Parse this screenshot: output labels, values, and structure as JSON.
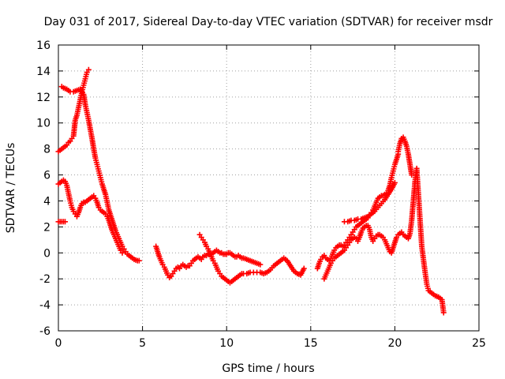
{
  "chart_data": {
    "type": "scatter",
    "title": "Day 031 of 2017, Sidereal Day-to-day VTEC variation (SDTVAR) for receiver msdr",
    "xlabel": "GPS time / hours",
    "ylabel": "SDTVAR / TECUs",
    "xlim": [
      0,
      25
    ],
    "ylim": [
      -6,
      16
    ],
    "x_ticks": [
      "0",
      "5",
      "10",
      "15",
      "20",
      "25"
    ],
    "y_ticks": [
      "-6",
      "-4",
      "-2",
      "0",
      "2",
      "4",
      "6",
      "8",
      "10",
      "12",
      "14",
      "16"
    ],
    "grid": true,
    "marker": "plus",
    "color": "#ff0000",
    "series": [
      {
        "x": [
          0.0,
          0.1,
          0.2,
          0.3,
          0.4,
          0.5,
          0.6,
          0.7,
          0.8,
          0.9,
          1.0,
          1.1,
          1.2,
          1.3,
          1.4,
          1.5,
          1.6,
          1.7,
          1.8
        ],
        "y": [
          7.8,
          7.9,
          8.0,
          8.1,
          8.2,
          8.3,
          8.5,
          8.6,
          8.8,
          9.0,
          10.2,
          10.6,
          11.2,
          11.8,
          12.4,
          12.9,
          13.4,
          13.9,
          14.1
        ]
      },
      {
        "x": [
          0.2,
          0.3,
          0.5,
          0.7,
          0.9,
          1.1,
          1.3,
          1.5,
          1.6,
          1.7,
          1.8,
          1.9,
          2.0,
          2.1,
          2.2,
          2.3,
          2.4,
          2.5,
          2.6,
          2.7,
          2.8,
          2.9,
          3.0,
          3.1,
          3.2,
          3.3,
          3.4,
          3.5,
          3.6,
          3.7,
          3.8,
          3.9,
          4.0,
          4.1,
          4.2,
          4.3,
          4.5,
          4.7,
          4.8
        ],
        "y": [
          12.8,
          12.7,
          12.6,
          12.4,
          12.4,
          12.5,
          12.6,
          12.2,
          11.4,
          10.8,
          10.2,
          9.5,
          8.8,
          8.0,
          7.3,
          6.8,
          6.3,
          5.8,
          5.3,
          4.9,
          4.5,
          3.9,
          3.3,
          2.9,
          2.5,
          2.1,
          1.7,
          1.4,
          1.1,
          0.8,
          0.5,
          0.3,
          0.1,
          -0.1,
          -0.2,
          -0.3,
          -0.5,
          -0.6,
          -0.6
        ]
      },
      {
        "x": [
          0.0,
          0.1,
          0.2,
          0.3,
          0.4,
          0.5,
          0.6,
          0.7,
          0.8,
          0.9,
          1.0,
          1.1,
          1.2,
          1.3,
          1.4,
          1.5,
          1.6,
          1.7,
          1.8,
          1.9,
          2.0,
          2.1,
          2.2,
          2.3,
          2.4,
          2.5,
          2.6,
          2.7,
          2.8,
          2.9,
          3.0,
          3.1,
          3.2,
          3.3,
          3.4,
          3.5,
          3.6,
          3.7,
          3.8
        ],
        "y": [
          5.3,
          5.4,
          5.5,
          5.6,
          5.5,
          5.2,
          4.6,
          4.0,
          3.5,
          3.2,
          3.0,
          2.8,
          3.1,
          3.5,
          3.8,
          3.9,
          3.9,
          4.0,
          4.1,
          4.2,
          4.3,
          4.4,
          4.2,
          3.9,
          3.5,
          3.3,
          3.2,
          3.1,
          3.0,
          2.8,
          2.5,
          2.1,
          1.7,
          1.4,
          1.1,
          0.8,
          0.5,
          0.2,
          0.0
        ]
      },
      {
        "x": [
          0.0,
          0.1,
          0.2,
          0.3,
          0.4
        ],
        "y": [
          2.4,
          2.4,
          2.4,
          2.4,
          2.4
        ]
      },
      {
        "x": [
          5.8,
          5.9,
          6.0,
          6.1,
          6.2,
          6.3,
          6.4,
          6.5,
          6.6,
          6.7,
          6.8,
          6.9,
          7.0,
          7.1,
          7.2,
          7.3,
          7.4,
          7.5,
          7.6,
          7.7,
          7.8,
          7.9,
          8.0,
          8.1,
          8.2,
          8.3,
          8.4,
          8.5,
          8.6,
          8.7,
          8.8,
          8.9,
          9.0,
          9.1,
          9.2,
          9.3,
          9.4,
          9.5,
          9.6,
          9.7,
          9.8,
          9.9,
          10.0,
          10.1,
          10.2,
          10.3,
          10.4,
          10.5,
          10.6,
          10.7,
          10.8,
          10.9,
          11.0,
          11.2,
          11.4,
          11.6,
          11.8,
          12.0
        ],
        "y": [
          0.5,
          0.1,
          -0.3,
          -0.6,
          -0.9,
          -1.1,
          -1.4,
          -1.7,
          -1.9,
          -1.8,
          -1.6,
          -1.4,
          -1.2,
          -1.1,
          -1.2,
          -1.0,
          -0.9,
          -1.0,
          -1.1,
          -1.0,
          -1.0,
          -0.8,
          -0.6,
          -0.5,
          -0.4,
          -0.3,
          -0.4,
          -0.5,
          -0.3,
          -0.2,
          -0.2,
          -0.1,
          -0.1,
          -0.1,
          0.0,
          0.1,
          0.2,
          0.1,
          0.0,
          0.0,
          -0.1,
          -0.1,
          -0.1,
          0.0,
          0.0,
          -0.1,
          -0.2,
          -0.3,
          -0.3,
          -0.2,
          -0.3,
          -0.4,
          -0.4,
          -0.5,
          -0.6,
          -0.7,
          -0.8,
          -0.9
        ]
      },
      {
        "x": [
          8.4,
          8.5,
          8.6,
          8.7,
          8.8,
          8.9,
          9.0,
          9.1,
          9.2,
          9.3,
          9.4,
          9.5,
          9.6,
          9.7,
          9.8,
          9.9,
          10.0,
          10.1,
          10.2,
          10.3,
          10.4,
          10.5,
          10.6,
          10.7,
          10.8,
          10.9,
          11.0,
          11.2,
          11.4,
          11.6,
          11.8,
          12.0,
          12.2,
          12.4,
          12.6,
          12.8,
          13.0,
          13.2,
          13.4,
          13.6,
          13.8,
          14.0,
          14.2,
          14.4,
          14.6
        ],
        "y": [
          1.4,
          1.2,
          1.0,
          0.8,
          0.5,
          0.3,
          0.0,
          -0.3,
          -0.6,
          -0.8,
          -1.1,
          -1.4,
          -1.6,
          -1.8,
          -1.9,
          -2.0,
          -2.1,
          -2.2,
          -2.3,
          -2.2,
          -2.1,
          -2.0,
          -1.9,
          -1.8,
          -1.7,
          -1.6,
          -1.6,
          -1.6,
          -1.5,
          -1.5,
          -1.5,
          -1.5,
          -1.6,
          -1.5,
          -1.3,
          -1.0,
          -0.8,
          -0.6,
          -0.4,
          -0.6,
          -1.0,
          -1.4,
          -1.6,
          -1.7,
          -1.2
        ]
      },
      {
        "x": [
          15.4,
          15.5,
          15.6,
          15.7,
          15.8,
          15.9,
          16.0,
          16.1,
          16.2,
          16.3,
          16.4,
          16.5,
          16.6,
          16.7,
          16.8,
          16.9,
          17.0,
          17.1,
          17.2,
          17.3,
          17.4,
          17.5,
          17.6,
          17.7,
          17.8,
          17.9,
          18.0,
          18.1,
          18.2,
          18.3,
          18.4,
          18.5,
          18.6,
          18.7,
          18.8,
          18.9,
          19.0,
          19.1,
          19.2,
          19.3,
          19.4,
          19.5,
          19.6,
          19.7,
          19.8,
          19.9,
          20.0,
          20.1,
          20.2
        ],
        "y": [
          -1.2,
          -0.8,
          -0.5,
          -0.3,
          -0.2,
          -0.4,
          -0.5,
          -0.6,
          -0.4,
          -0.1,
          0.2,
          0.4,
          0.5,
          0.6,
          0.6,
          0.5,
          0.6,
          0.8,
          1.0,
          1.2,
          1.4,
          1.6,
          1.8,
          2.0,
          2.1,
          2.2,
          2.3,
          2.4,
          2.5,
          2.6,
          2.7,
          2.9,
          3.1,
          3.3,
          3.6,
          3.9,
          4.2,
          4.3,
          4.4,
          4.4,
          4.5,
          4.6,
          4.8,
          5.2,
          5.8,
          6.3,
          6.8,
          7.2,
          7.6
        ]
      },
      {
        "x": [
          15.8,
          15.9,
          16.0,
          16.1,
          16.2,
          16.3,
          16.4,
          16.5,
          16.6,
          16.7,
          16.8,
          16.9,
          17.0,
          17.1,
          17.2,
          17.3,
          17.4,
          17.5,
          17.6,
          17.7,
          17.8,
          17.9,
          18.0,
          18.1,
          18.2,
          18.3,
          18.4,
          18.5,
          18.6,
          18.7,
          18.8,
          18.9,
          19.0,
          19.1,
          19.2,
          19.3,
          19.4,
          19.5,
          19.6,
          19.7,
          19.8,
          19.9,
          20.0,
          20.1,
          20.2,
          20.3,
          20.4,
          20.5,
          20.6,
          20.7,
          20.8,
          20.9,
          21.0,
          21.1,
          21.2,
          21.3,
          21.4,
          21.5,
          21.6,
          21.7,
          21.8,
          21.9,
          22.0,
          22.2,
          22.4,
          22.6,
          22.8,
          22.9
        ],
        "y": [
          -2.0,
          -1.7,
          -1.4,
          -1.1,
          -0.8,
          -0.6,
          -0.4,
          -0.3,
          -0.2,
          -0.1,
          0.0,
          0.1,
          0.2,
          0.4,
          0.6,
          0.8,
          1.0,
          1.1,
          1.2,
          1.1,
          0.9,
          1.2,
          1.6,
          1.9,
          2.0,
          2.1,
          2.1,
          1.8,
          1.2,
          0.9,
          1.1,
          1.3,
          1.4,
          1.4,
          1.3,
          1.2,
          1.0,
          0.7,
          0.4,
          0.1,
          0.0,
          0.4,
          0.8,
          1.2,
          1.4,
          1.5,
          1.6,
          1.4,
          1.3,
          1.2,
          1.1,
          1.5,
          2.5,
          4.0,
          5.5,
          6.5,
          4.5,
          2.5,
          0.5,
          -0.5,
          -1.5,
          -2.4,
          -2.9,
          -3.1,
          -3.3,
          -3.4,
          -3.6,
          -4.6
        ]
      },
      {
        "x": [
          17.0,
          17.2,
          17.4,
          17.6,
          17.8,
          18.0,
          18.2,
          18.4,
          18.6,
          18.8,
          19.0,
          19.2,
          19.4,
          19.6,
          19.8,
          20.0
        ],
        "y": [
          2.4,
          2.4,
          2.5,
          2.5,
          2.6,
          2.6,
          2.7,
          2.8,
          3.0,
          3.2,
          3.5,
          3.8,
          4.1,
          4.5,
          4.9,
          5.4
        ]
      },
      {
        "x": [
          20.2,
          20.3,
          20.4,
          20.5,
          20.6,
          20.7,
          20.8,
          20.9,
          21.0
        ],
        "y": [
          7.8,
          8.4,
          8.8,
          8.9,
          8.6,
          8.2,
          7.6,
          6.8,
          6.0
        ]
      }
    ]
  }
}
